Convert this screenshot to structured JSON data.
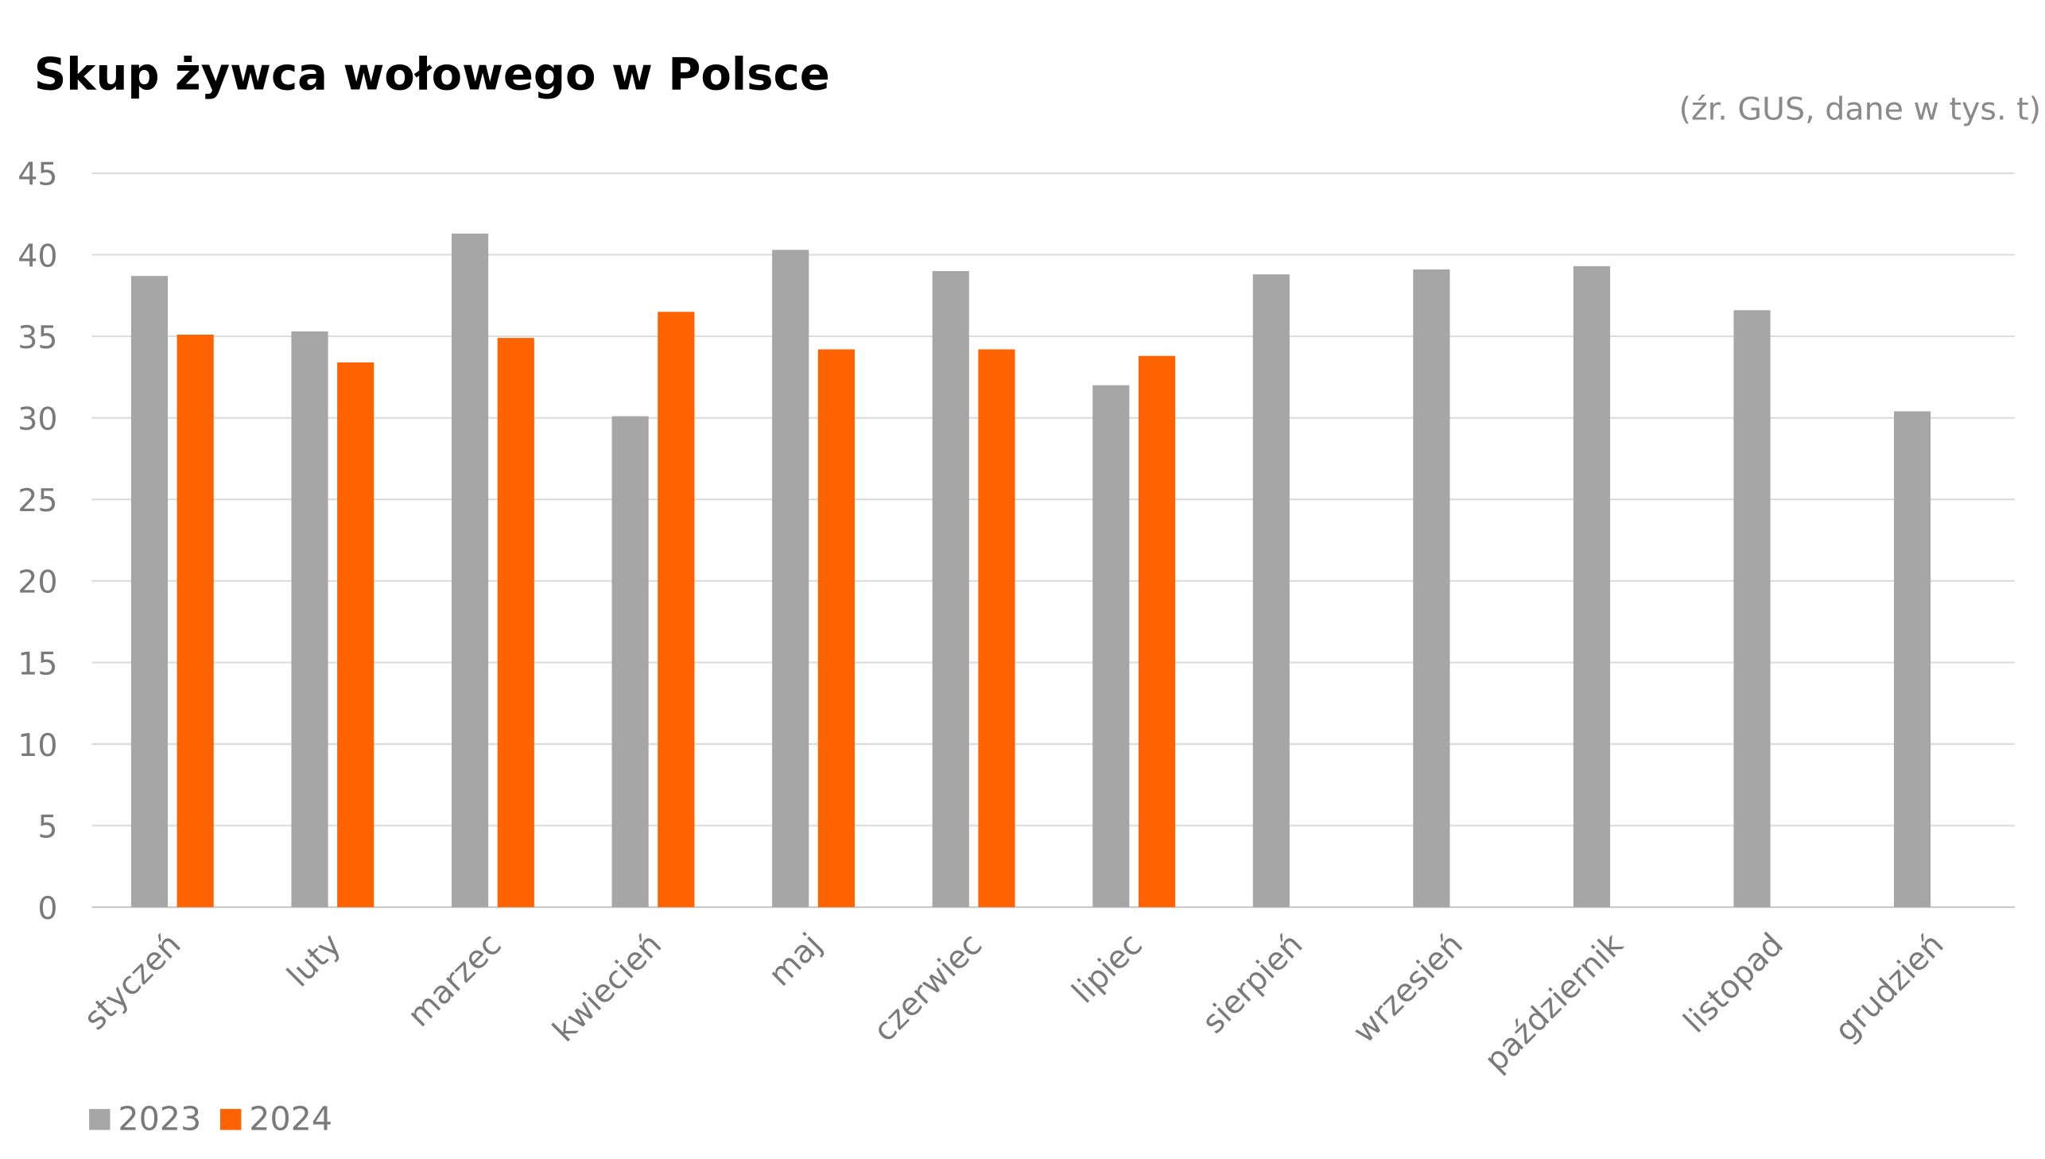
{
  "chart_data": {
    "type": "bar",
    "title": "Skup żywca wołowego w Polsce",
    "subtitle": "(źr. GUS, dane w tys. t)",
    "xlabel": "",
    "ylabel": "",
    "ylim": [
      0,
      45
    ],
    "yticks": [
      0,
      5,
      10,
      15,
      20,
      25,
      30,
      35,
      40,
      45
    ],
    "grid": true,
    "legend_position": "bottom-left",
    "categories": [
      "styczeń",
      "luty",
      "marzec",
      "kwiecień",
      "maj",
      "czerwiec",
      "lipiec",
      "sierpień",
      "wrzesień",
      "październik",
      "listopad",
      "grudzień"
    ],
    "series": [
      {
        "name": "2023",
        "color": "#a6a6a6",
        "values": [
          38.7,
          35.3,
          41.3,
          30.1,
          40.3,
          39.0,
          32.0,
          38.8,
          39.1,
          39.3,
          36.6,
          30.4
        ]
      },
      {
        "name": "2024",
        "color": "#ff6200",
        "values": [
          35.1,
          33.4,
          34.9,
          36.5,
          34.2,
          34.2,
          33.8,
          null,
          null,
          null,
          null,
          null
        ]
      }
    ]
  }
}
